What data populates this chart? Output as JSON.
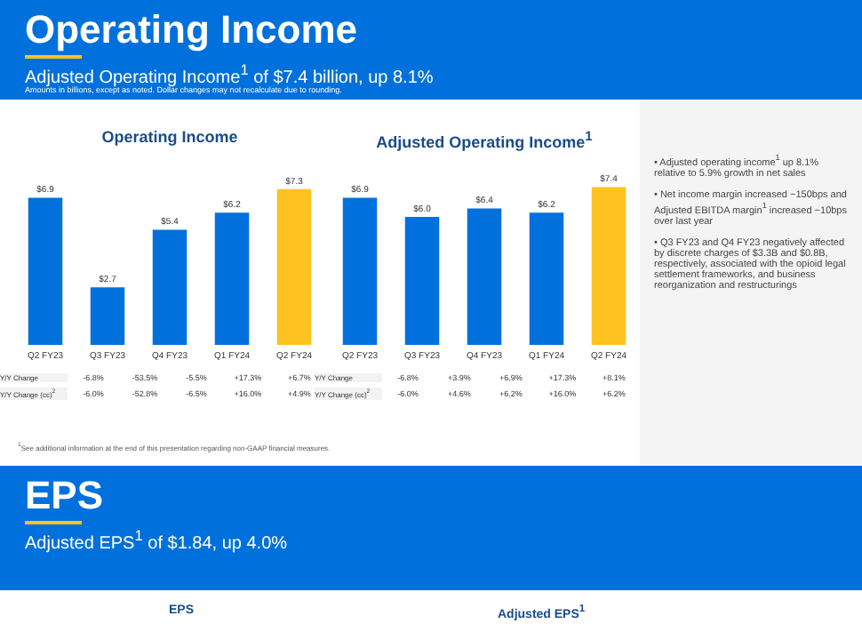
{
  "chart_data": [
    {
      "type": "other",
      "title": "Operating Income",
      "subtitle": "Adjusted Operating Income$^{1}$ of $7.4 billion, up 8.1%",
      "annotations": [
        "Amounts in billions, except as noted. Dollar changes may not recalculate due to rounding."
      ]
    },
    {
      "type": "bar",
      "title": "Operating Income",
      "categories": [
        "Q2 FY23",
        "Q3 FY23",
        "Q4 FY23",
        "Q1 FY24",
        "Q2 FY24"
      ],
      "values": [
        6.9,
        2.7,
        5.4,
        6.2,
        7.3
      ],
      "colors": [
        "#0071dc",
        "#0071dc",
        "#0071dc",
        "#0071dc",
        "#ffc220"
      ],
      "value_labels": [
        "$6.9",
        "$2.7",
        "$5.4",
        "$6.2",
        "$7.3"
      ],
      "grid": false,
      "annotations": [
        "Y/Y Change",
        "-6.8%",
        "-53.5%",
        "-5.5%",
        "+17.3%",
        "+6.7%",
        "Y/Y Change (cc)$^{2}$",
        "-6.0%",
        "-52.8%",
        "-6.5%",
        "+16.0%",
        "+4.9%"
      ]
    },
    {
      "type": "bar",
      "title": "Adjusted Operating Income$^{1}$",
      "categories": [
        "Q2 FY23",
        "Q3 FY23",
        "Q4 FY23",
        "Q1 FY24",
        "Q2 FY24"
      ],
      "values": [
        6.9,
        6.0,
        6.4,
        6.2,
        7.4
      ],
      "colors": [
        "#0071dc",
        "#0071dc",
        "#0071dc",
        "#0071dc",
        "#ffc220"
      ],
      "value_labels": [
        "$6.9",
        "$6.0",
        "$6.4",
        "$6.2",
        "$7.4"
      ],
      "grid": false,
      "annotations": [
        "Y/Y Change",
        "-6.8%",
        "+3.9%",
        "+6.9%",
        "+17.3%",
        "+8.1%",
        "Y/Y Change (cc)$^{2}$",
        "-6.0%",
        "+4.6%",
        "+6.2%",
        "+16.0%",
        "+6.2%"
      ]
    },
    {
      "type": "other",
      "annotations": [
        "• Adjusted operating income$^{1}$ up 8.1% relative to 5.9% growth in net sales",
        "• Net income margin increased ~150bps and Adjusted EBITDA margin$^{1}$ increased ~10bps over last year",
        "• Q3 FY23 and Q4 FY23 negatively affected by discrete charges of $3.3B and $0.8B, respectively, associated with the opioid legal settlement frameworks, and business reorganization and restructurings",
        "$^{1}$See additional information at the end of this presentation regarding non-GAAP financial measures."
      ]
    },
    {
      "type": "other",
      "title": "EPS",
      "subtitle": "Adjusted EPS$^{1}$ of $1.84, up 4.0%",
      "annotations": [
        "EPS",
        "Adjusted EPS$^{1}$"
      ]
    }
  ]
}
